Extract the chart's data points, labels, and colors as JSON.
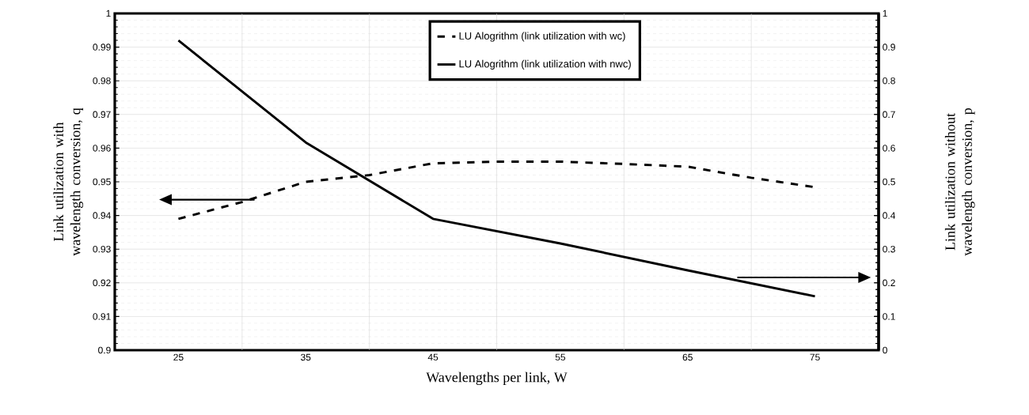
{
  "chart_data": {
    "type": "line",
    "xlabel": "Wavelengths per link, W",
    "ylabel": "Link utilization with wavelength conversion, q",
    "y2label": "Link utilization without wavelength conversion, p",
    "xlim": [
      20,
      80
    ],
    "xticks": [
      25,
      {
        "value": 30,
        "label": null
      },
      35,
      {
        "value": 40,
        "label": null
      },
      45,
      {
        "value": 50,
        "label": null
      },
      55,
      {
        "value": 60,
        "label": null
      },
      65,
      {
        "value": 70,
        "label": null
      },
      75
    ],
    "ylim": [
      0.9,
      1
    ],
    "yticks": [
      0.9,
      0.91,
      0.92,
      0.93,
      0.94,
      0.95,
      0.96,
      0.97,
      0.98,
      0.99,
      1
    ],
    "y2lim": [
      0,
      1
    ],
    "y2ticks": [
      0,
      0.1,
      0.2,
      0.3,
      0.4,
      0.5,
      0.6,
      0.7,
      0.8,
      0.9,
      1
    ],
    "grid": true,
    "legend": "top",
    "series": [
      {
        "name": "LU Alogrithm (link utilization with wc)",
        "color": "#000000",
        "line_style": "dashed",
        "axis": "y",
        "x": [
          25,
          30,
          35,
          40,
          45,
          50,
          55,
          60,
          65,
          70,
          75
        ],
        "values": [
          0.939,
          0.944,
          0.95,
          0.952,
          0.9555,
          0.956,
          0.956,
          0.9553,
          0.9545,
          0.9512,
          0.9484
        ]
      },
      {
        "name": "LU Alogrithm (link utilization with nwc)",
        "color": "#000000",
        "line_style": "solid",
        "axis": "y2",
        "x": [
          25,
          35,
          45,
          55,
          65,
          75
        ],
        "values": [
          0.92,
          0.617,
          0.39,
          0.317,
          0.237,
          0.16
        ]
      }
    ]
  }
}
